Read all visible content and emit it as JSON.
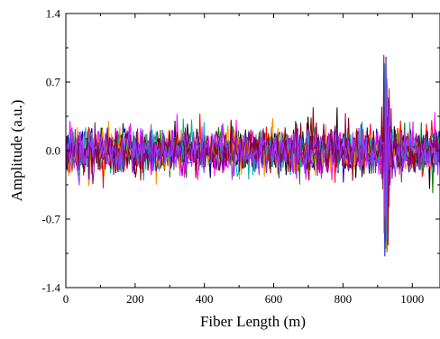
{
  "chart_data": {
    "type": "line",
    "title": "",
    "xlabel": "Fiber Length (m)",
    "ylabel": "Amplitude (a.u.)",
    "xlim": [
      0,
      1080
    ],
    "ylim": [
      -1.4,
      1.4
    ],
    "x_ticks": [
      0,
      200,
      400,
      600,
      800,
      1000
    ],
    "x_tick_labels": [
      "0",
      "200",
      "400",
      "600",
      "800",
      "1000"
    ],
    "y_ticks": [
      -1.4,
      -0.7,
      0.0,
      0.7,
      1.4
    ],
    "y_tick_labels": [
      "-1.4",
      "-0.7",
      "0.0",
      "0.7",
      "1.4"
    ],
    "grid": false,
    "legend": "none",
    "series_count": 10,
    "noise_amplitude_typical": 0.35,
    "event": {
      "x": 925,
      "peak_max": 1.17,
      "peak_min": -1.17
    },
    "series_colors": [
      "#000000",
      "#ff0000",
      "#0000cc",
      "#008000",
      "#ff00ff",
      "#ff8c00",
      "#00aaaa",
      "#8b0000",
      "#800080",
      "#9933ff"
    ]
  }
}
